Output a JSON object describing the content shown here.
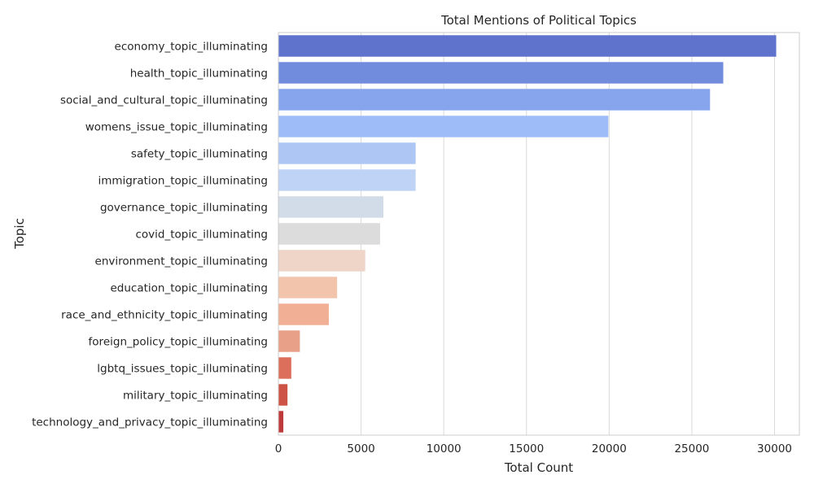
{
  "chart_data": {
    "type": "bar",
    "orientation": "horizontal",
    "title": "Total Mentions of Political Topics",
    "xlabel": "Total Count",
    "ylabel": "Topic",
    "xlim": [
      0,
      31500
    ],
    "xticks": [
      0,
      5000,
      10000,
      15000,
      20000,
      25000,
      30000
    ],
    "grid": true,
    "categories": [
      "economy_topic_illuminating",
      "health_topic_illuminating",
      "social_and_cultural_topic_illuminating",
      "womens_issue_topic_illuminating",
      "safety_topic_illuminating",
      "immigration_topic_illuminating",
      "governance_topic_illuminating",
      "covid_topic_illuminating",
      "environment_topic_illuminating",
      "education_topic_illuminating",
      "race_and_ethnicity_topic_illuminating",
      "foreign_policy_topic_illuminating",
      "lgbtq_issues_topic_illuminating",
      "military_topic_illuminating",
      "technology_and_privacy_topic_illuminating"
    ],
    "values": [
      30100,
      26900,
      26100,
      19950,
      8300,
      8300,
      6350,
      6150,
      5250,
      3550,
      3050,
      1300,
      780,
      550,
      300
    ],
    "colors": [
      "#6073cc",
      "#728cdd",
      "#87a5ec",
      "#9ebcf8",
      "#aec6f4",
      "#bfd3f6",
      "#d2dbe8",
      "#dddcdc",
      "#eed5c7",
      "#f2c4ab",
      "#f1b096",
      "#e9a088",
      "#db6f5b",
      "#cc5346",
      "#be3a3a"
    ]
  }
}
